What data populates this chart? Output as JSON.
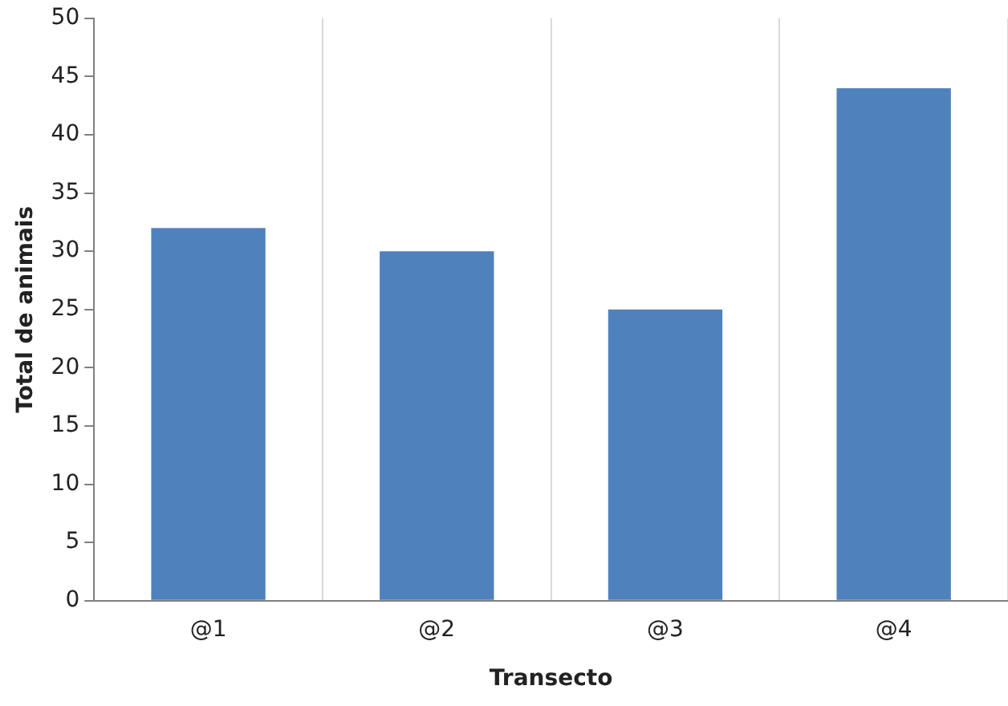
{
  "chart_data": {
    "type": "bar",
    "xlabel": "Transecto",
    "ylabel": "Total de animais",
    "categories": [
      "@1",
      "@2",
      "@3",
      "@4"
    ],
    "values": [
      32,
      30,
      25,
      44
    ],
    "color": "#4f81bd",
    "ylim": [
      0,
      50
    ],
    "yticks": [
      0,
      5,
      10,
      15,
      20,
      25,
      30,
      35,
      40,
      45,
      50
    ],
    "grid": "x",
    "legend": false
  }
}
